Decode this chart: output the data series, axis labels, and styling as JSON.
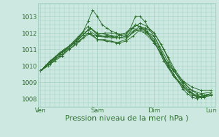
{
  "bg_color": "#cce8e0",
  "grid_color": "#99ccbb",
  "line_color": "#2d6e2d",
  "xlabel": "Pression niveau de la mer( hPa )",
  "xlabel_fontsize": 8,
  "yticks": [
    1008,
    1009,
    1010,
    1011,
    1012,
    1013
  ],
  "xtick_labels": [
    "Ven",
    "Sam",
    "Dim",
    "Lun"
  ],
  "xtick_positions": [
    0,
    48,
    96,
    144
  ],
  "ylim": [
    1007.5,
    1013.8
  ],
  "xlim": [
    -2,
    148
  ],
  "series": [
    [
      0.0,
      1009.7,
      4.0,
      1010.0,
      8.0,
      1010.3,
      12.0,
      1010.5,
      16.0,
      1010.7,
      20.0,
      1011.0,
      24.0,
      1011.1,
      28.0,
      1011.4,
      32.0,
      1011.7,
      36.0,
      1012.1,
      40.0,
      1012.7,
      44.0,
      1013.4,
      48.0,
      1013.0,
      52.0,
      1012.5,
      56.0,
      1012.3,
      60.0,
      1012.1,
      64.0,
      1012.0,
      68.0,
      1011.9,
      72.0,
      1012.0,
      76.0,
      1012.3,
      80.0,
      1013.0,
      84.0,
      1013.0,
      88.0,
      1012.7,
      92.0,
      1012.2,
      96.0,
      1011.8,
      100.0,
      1011.2,
      104.0,
      1010.5,
      108.0,
      1010.0,
      112.0,
      1009.5,
      116.0,
      1009.1,
      120.0,
      1008.6,
      124.0,
      1008.3,
      128.0,
      1008.1,
      132.0,
      1008.0,
      136.0,
      1008.1,
      140.0,
      1008.2,
      144.0,
      1008.3
    ],
    [
      0.0,
      1009.7,
      8.0,
      1010.2,
      16.0,
      1010.7,
      24.0,
      1011.1,
      32.0,
      1011.6,
      40.0,
      1012.2,
      48.0,
      1011.8,
      56.0,
      1011.8,
      64.0,
      1011.7,
      72.0,
      1011.7,
      80.0,
      1012.5,
      88.0,
      1012.2,
      96.0,
      1011.5,
      104.0,
      1010.3,
      112.0,
      1009.4,
      120.0,
      1008.7,
      128.0,
      1008.2,
      136.0,
      1008.1,
      144.0,
      1008.3
    ],
    [
      0.0,
      1009.7,
      8.0,
      1010.3,
      16.0,
      1010.8,
      24.0,
      1011.2,
      32.0,
      1011.8,
      40.0,
      1012.4,
      48.0,
      1012.0,
      56.0,
      1011.9,
      64.0,
      1011.8,
      72.0,
      1011.9,
      80.0,
      1012.5,
      88.0,
      1012.3,
      96.0,
      1012.0,
      104.0,
      1011.0,
      112.0,
      1009.8,
      120.0,
      1009.0,
      128.0,
      1008.5,
      136.0,
      1008.3,
      144.0,
      1008.4
    ],
    [
      0.0,
      1009.7,
      8.0,
      1010.1,
      16.0,
      1010.6,
      24.0,
      1011.0,
      32.0,
      1011.5,
      40.0,
      1012.0,
      48.0,
      1011.6,
      56.0,
      1011.5,
      64.0,
      1011.4,
      72.0,
      1011.6,
      80.0,
      1012.2,
      88.0,
      1012.0,
      96.0,
      1011.4,
      104.0,
      1010.5,
      112.0,
      1009.7,
      120.0,
      1009.1,
      128.0,
      1008.7,
      136.0,
      1008.5,
      144.0,
      1008.5
    ],
    [
      0.0,
      1009.7,
      6.0,
      1010.0,
      12.0,
      1010.4,
      18.0,
      1010.7,
      24.0,
      1011.1,
      30.0,
      1011.5,
      36.0,
      1011.9,
      42.0,
      1012.3,
      48.0,
      1011.9,
      54.0,
      1011.8,
      60.0,
      1011.8,
      66.0,
      1011.7,
      72.0,
      1011.8,
      78.0,
      1012.1,
      84.0,
      1012.4,
      90.0,
      1012.1,
      96.0,
      1011.6,
      102.0,
      1010.8,
      108.0,
      1010.0,
      114.0,
      1009.3,
      120.0,
      1008.8,
      126.0,
      1008.4,
      132.0,
      1008.1,
      138.0,
      1008.1,
      144.0,
      1008.2
    ],
    [
      0.0,
      1009.7,
      6.0,
      1010.1,
      12.0,
      1010.5,
      18.0,
      1010.9,
      24.0,
      1011.2,
      30.0,
      1011.5,
      36.0,
      1011.9,
      42.0,
      1012.3,
      48.0,
      1011.9,
      54.0,
      1012.0,
      60.0,
      1012.0,
      66.0,
      1011.9,
      72.0,
      1012.0,
      78.0,
      1012.3,
      84.0,
      1012.6,
      90.0,
      1012.4,
      96.0,
      1012.0,
      102.0,
      1011.3,
      108.0,
      1010.5,
      114.0,
      1009.7,
      120.0,
      1009.1,
      126.0,
      1008.6,
      132.0,
      1008.3,
      138.0,
      1008.2,
      144.0,
      1008.3
    ],
    [
      0.0,
      1009.7,
      6.0,
      1010.0,
      12.0,
      1010.3,
      18.0,
      1010.6,
      24.0,
      1011.0,
      30.0,
      1011.3,
      36.0,
      1011.7,
      42.0,
      1012.0,
      48.0,
      1011.6,
      54.0,
      1011.6,
      60.0,
      1011.5,
      66.0,
      1011.4,
      72.0,
      1011.5,
      78.0,
      1011.8,
      84.0,
      1012.2,
      90.0,
      1012.0,
      96.0,
      1011.4,
      102.0,
      1010.7,
      108.0,
      1009.9,
      114.0,
      1009.3,
      120.0,
      1008.8,
      126.0,
      1008.4,
      132.0,
      1008.2,
      138.0,
      1008.1,
      144.0,
      1008.2
    ],
    [
      0.0,
      1009.7,
      12.0,
      1010.5,
      24.0,
      1011.2,
      36.0,
      1012.0,
      48.0,
      1011.8,
      60.0,
      1011.7,
      72.0,
      1011.7,
      84.0,
      1012.3,
      96.0,
      1011.8,
      108.0,
      1010.2,
      120.0,
      1008.9,
      132.0,
      1008.1,
      144.0,
      1008.3
    ]
  ]
}
